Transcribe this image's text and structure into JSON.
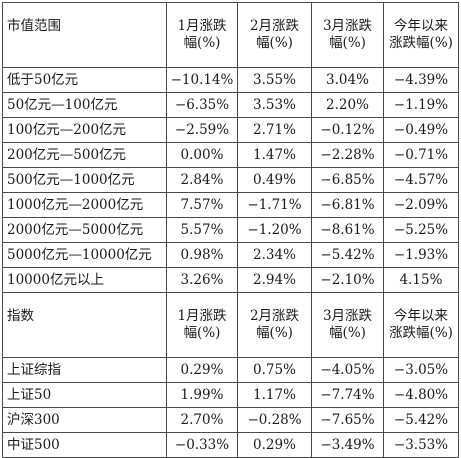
{
  "section1": {
    "header": {
      "label": "市值范围",
      "cols": [
        {
          "line1": "1月涨跌",
          "line2": "幅(%)"
        },
        {
          "line1": "2月涨跌",
          "line2": "幅(%)"
        },
        {
          "line1": "3月涨跌",
          "line2": "幅(%)"
        },
        {
          "line1": "今年以来",
          "line2": "涨跌幅(%)"
        }
      ]
    },
    "rows": [
      {
        "label": "低于50亿元",
        "v": [
          "−10.14%",
          "3.55%",
          "3.04%",
          "−4.39%"
        ]
      },
      {
        "label": "50亿元—100亿元",
        "v": [
          "−6.35%",
          "3.53%",
          "2.20%",
          "−1.19%"
        ]
      },
      {
        "label": "100亿元—200亿元",
        "v": [
          "−2.59%",
          "2.71%",
          "−0.12%",
          "−0.49%"
        ]
      },
      {
        "label": "200亿元—500亿元",
        "v": [
          "0.00%",
          "1.47%",
          "−2.28%",
          "−0.71%"
        ]
      },
      {
        "label": "500亿元—1000亿元",
        "v": [
          "2.84%",
          "0.49%",
          "−6.85%",
          "−4.57%"
        ]
      },
      {
        "label": "1000亿元—2000亿元",
        "v": [
          "7.57%",
          "−1.71%",
          "−6.81%",
          "−2.09%"
        ]
      },
      {
        "label": "2000亿元—5000亿元",
        "v": [
          "5.57%",
          "−1.20%",
          "−8.61%",
          "−5.25%"
        ]
      },
      {
        "label": "5000亿元—10000亿元",
        "v": [
          "0.98%",
          "2.34%",
          "−5.42%",
          "−1.93%"
        ]
      },
      {
        "label": "10000亿元以上",
        "v": [
          "3.26%",
          "2.94%",
          "−2.10%",
          "4.15%"
        ]
      }
    ]
  },
  "section2": {
    "header": {
      "label": "指数",
      "cols": [
        {
          "line1": "1月涨跌",
          "line2": "幅(%)"
        },
        {
          "line1": "2月涨跌",
          "line2": "幅(%)"
        },
        {
          "line1": "3月涨跌",
          "line2": "幅(%)"
        },
        {
          "line1": "今年以来",
          "line2": "涨跌幅(%)"
        }
      ]
    },
    "rows": [
      {
        "label": "上证综指",
        "v": [
          "0.29%",
          "0.75%",
          "−4.05%",
          "−3.05%"
        ]
      },
      {
        "label": "上证50",
        "v": [
          "1.99%",
          "1.17%",
          "−7.74%",
          "−4.80%"
        ]
      },
      {
        "label": "沪深300",
        "v": [
          "2.70%",
          "−0.28%",
          "−7.65%",
          "−5.42%"
        ]
      },
      {
        "label": "中证500",
        "v": [
          "−0.33%",
          "0.29%",
          "−3.49%",
          "−3.53%"
        ]
      }
    ]
  }
}
